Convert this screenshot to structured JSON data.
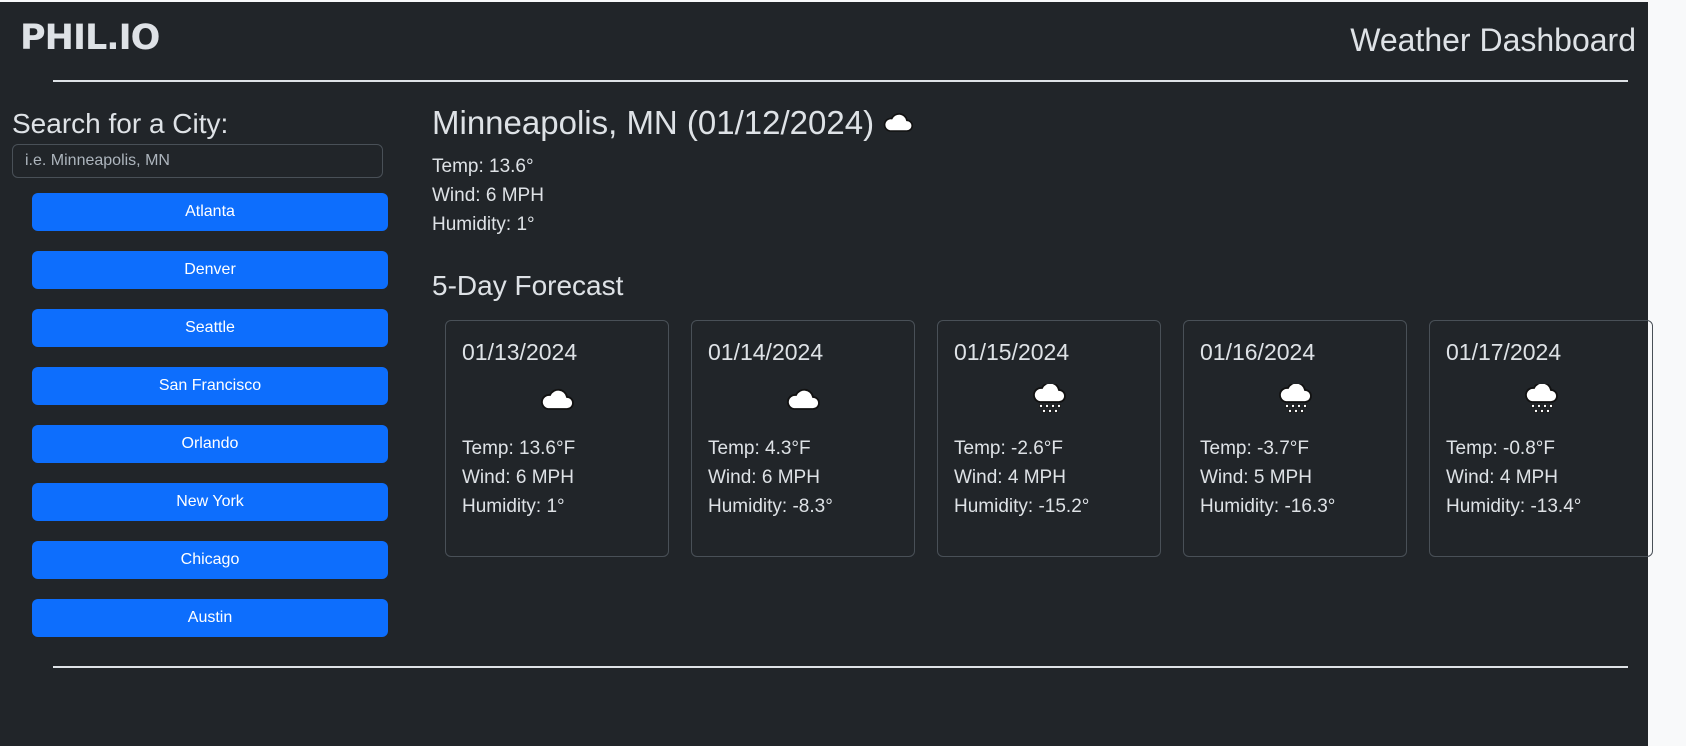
{
  "header": {
    "logo": "PHIL.IO",
    "title": "Weather Dashboard"
  },
  "search": {
    "label": "Search for a City:",
    "placeholder": "i.e. Minneapolis, MN",
    "value": ""
  },
  "cities": [
    "Atlanta",
    "Denver",
    "Seattle",
    "San Francisco",
    "Orlando",
    "New York",
    "Chicago",
    "Austin"
  ],
  "current": {
    "heading": "Minneapolis, MN (01/12/2024)",
    "icon": "cloud-icon",
    "temp": "Temp: 13.6°",
    "wind": "Wind: 6 MPH",
    "humidity": "Humidity: 1°"
  },
  "forecast": {
    "title": "5-Day Forecast",
    "days": [
      {
        "date": "01/13/2024",
        "icon": "cloud-icon",
        "temp": "Temp: 13.6°F",
        "wind": "Wind: 6 MPH",
        "humidity": "Humidity: 1°"
      },
      {
        "date": "01/14/2024",
        "icon": "cloud-icon",
        "temp": "Temp: 4.3°F",
        "wind": "Wind: 6 MPH",
        "humidity": "Humidity: -8.3°"
      },
      {
        "date": "01/15/2024",
        "icon": "snow-icon",
        "temp": "Temp: -2.6°F",
        "wind": "Wind: 4 MPH",
        "humidity": "Humidity: -15.2°"
      },
      {
        "date": "01/16/2024",
        "icon": "snow-icon",
        "temp": "Temp: -3.7°F",
        "wind": "Wind: 5 MPH",
        "humidity": "Humidity: -16.3°"
      },
      {
        "date": "01/17/2024",
        "icon": "snow-icon",
        "temp": "Temp: -0.8°F",
        "wind": "Wind: 4 MPH",
        "humidity": "Humidity: -13.4°"
      }
    ]
  },
  "colors": {
    "background": "#212529",
    "button": "#0d6efd",
    "text": "#dee2e6"
  }
}
